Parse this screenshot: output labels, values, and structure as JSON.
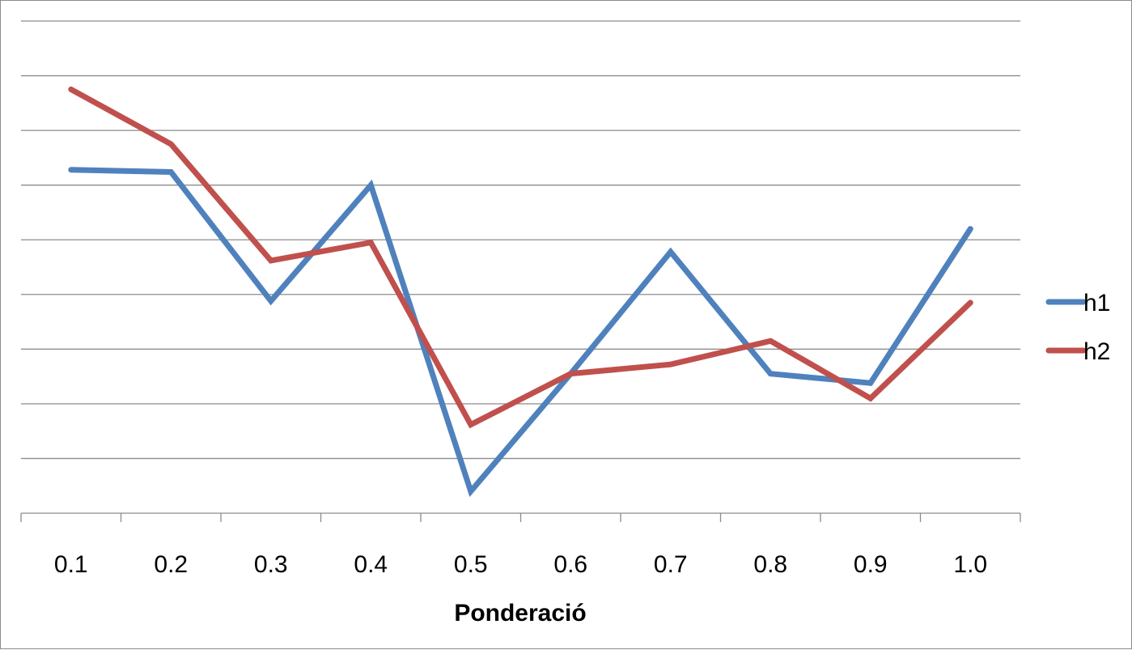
{
  "chart_data": {
    "type": "line",
    "categories": [
      "0.1",
      "0.2",
      "0.3",
      "0.4",
      "0.5",
      "0.6",
      "0.7",
      "0.8",
      "0.9",
      "1.0"
    ],
    "series": [
      {
        "name": "h1",
        "color": "#4F81BD",
        "values": [
          6.28,
          6.24,
          3.88,
          6.0,
          0.4,
          2.55,
          4.78,
          2.55,
          2.38,
          5.2
        ]
      },
      {
        "name": "h2",
        "color": "#C0504D",
        "values": [
          7.75,
          6.75,
          4.62,
          4.95,
          1.62,
          2.55,
          2.72,
          3.15,
          2.1,
          3.85
        ]
      }
    ],
    "title": "",
    "xlabel": "Ponderació",
    "ylabel": "",
    "ylim": [
      0,
      9
    ],
    "y_tick_labels": "none",
    "grid": true,
    "legend": "right"
  }
}
